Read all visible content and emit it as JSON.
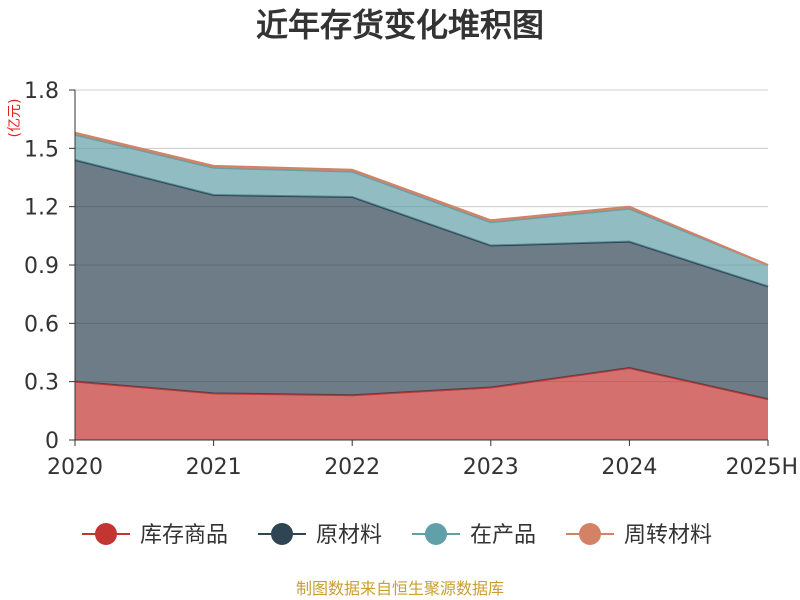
{
  "chart_data": {
    "type": "area",
    "stacked": true,
    "title": "近年存货变化堆积图",
    "unit": "(亿元)",
    "categories": [
      "2020",
      "2021",
      "2022",
      "2023",
      "2024",
      "2025H"
    ],
    "ylim": [
      0,
      1.8
    ],
    "yticks": [
      "0",
      "0.3",
      "0.6",
      "0.9",
      "1.2",
      "1.5",
      "1.8"
    ],
    "grid": true,
    "legend_position": "bottom",
    "series": [
      {
        "name": "库存商品",
        "color": "#c23531",
        "values": [
          0.3,
          0.24,
          0.23,
          0.27,
          0.37,
          0.21
        ]
      },
      {
        "name": "原材料",
        "color": "#2f4554",
        "values": [
          1.14,
          1.02,
          1.02,
          0.73,
          0.65,
          0.58
        ]
      },
      {
        "name": "在产品",
        "color": "#61a0a8",
        "values": [
          0.13,
          0.14,
          0.13,
          0.12,
          0.17,
          0.11
        ]
      },
      {
        "name": "周转材料",
        "color": "#d48265",
        "values": [
          0.01,
          0.01,
          0.01,
          0.01,
          0.01,
          0.0
        ]
      }
    ]
  },
  "source": "制图数据来自恒生聚源数据库"
}
